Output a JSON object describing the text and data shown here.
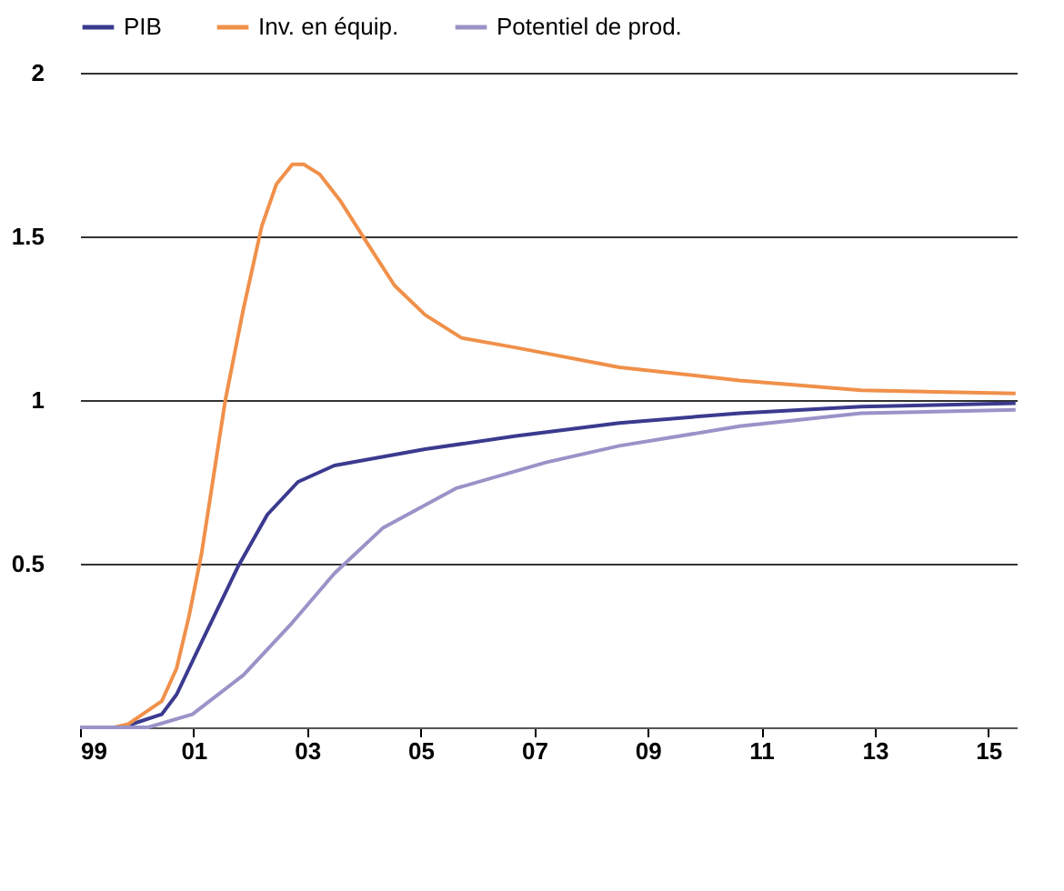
{
  "chart_data": {
    "type": "line",
    "xlim": [
      1999,
      2015.5
    ],
    "xticks": [
      {
        "value": 1999,
        "label": "99"
      },
      {
        "value": 2001,
        "label": "01"
      },
      {
        "value": 2003,
        "label": "03"
      },
      {
        "value": 2005,
        "label": "05"
      },
      {
        "value": 2007,
        "label": "07"
      },
      {
        "value": 2009,
        "label": "09"
      },
      {
        "value": 2011,
        "label": "11"
      },
      {
        "value": 2013,
        "label": "13"
      },
      {
        "value": 2015,
        "label": "15"
      }
    ],
    "ylim": [
      0,
      2
    ],
    "yticks": [
      0.5,
      1,
      1.5,
      2
    ],
    "grid": "y",
    "legend": "top",
    "line_style": "solid",
    "marker": "none",
    "series": [
      {
        "name": "PIB",
        "color": "#3b3a8f",
        "x": [
          1999,
          1999.74,
          2000.44,
          2000.7,
          2001.14,
          2001.78,
          2002.3,
          2002.84,
          2003.48,
          2005.08,
          2006.68,
          2008.5,
          2010.62,
          2012.76,
          2015.48
        ],
        "values": [
          0,
          0,
          0.04,
          0.1,
          0.26,
          0.49,
          0.65,
          0.75,
          0.8,
          0.85,
          0.89,
          0.93,
          0.96,
          0.98,
          0.99
        ]
      },
      {
        "name": "Inv. en équip.",
        "color": "#f0904a",
        "x": [
          1999,
          1999.6,
          1999.85,
          2000.44,
          2000.7,
          2000.92,
          2001.14,
          2001.56,
          2001.88,
          2002.2,
          2002.46,
          2002.74,
          2002.94,
          2003.22,
          2003.58,
          2004.02,
          2004.54,
          2005.08,
          2005.72,
          2006.68,
          2008.5,
          2010.62,
          2012.76,
          2015.48
        ],
        "values": [
          0,
          0,
          0.01,
          0.08,
          0.18,
          0.34,
          0.53,
          1.0,
          1.28,
          1.53,
          1.66,
          1.72,
          1.72,
          1.69,
          1.61,
          1.49,
          1.35,
          1.26,
          1.19,
          1.16,
          1.1,
          1.06,
          1.03,
          1.02
        ]
      },
      {
        "name": "Potentiel de prod.",
        "color": "#9a93c8",
        "x": [
          1999,
          2000.2,
          2000.98,
          2001.88,
          2002.74,
          2003.48,
          2004.34,
          2005.62,
          2007.22,
          2008.5,
          2010.62,
          2012.76,
          2015.48
        ],
        "values": [
          0,
          0,
          0.04,
          0.16,
          0.32,
          0.47,
          0.61,
          0.73,
          0.81,
          0.86,
          0.92,
          0.96,
          0.97
        ]
      }
    ]
  }
}
